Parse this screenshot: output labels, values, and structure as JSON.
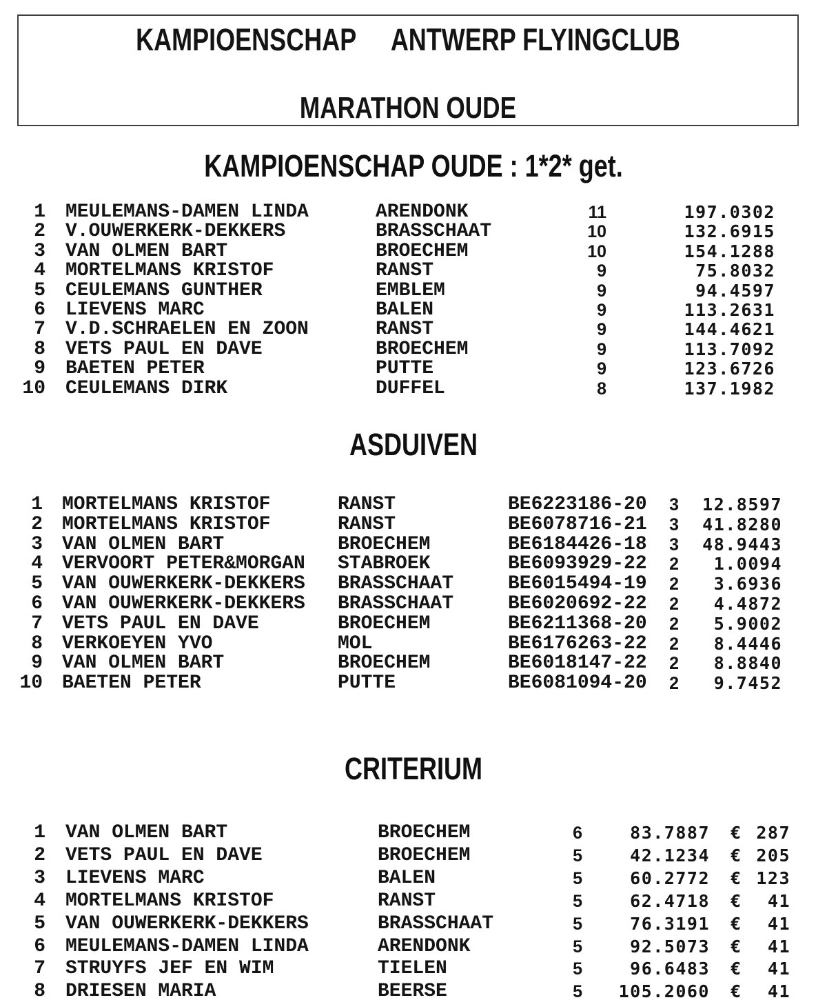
{
  "header_box": {
    "title_left": "KAMPIOENSCHAP",
    "title_right": "ANTWERP FLYINGCLUB",
    "subtitle": "MARATHON OUDE"
  },
  "sections": {
    "kampioenschap_oude": {
      "title": "KAMPIOENSCHAP OUDE : 1*2* get.",
      "rows": [
        {
          "rank": "1",
          "name": "MEULEMANS-DAMEN LINDA",
          "city": "ARENDONK",
          "count": "11",
          "points": "197.0302"
        },
        {
          "rank": "2",
          "name": "V.OUWERKERK-DEKKERS",
          "city": "BRASSCHAAT",
          "count": "10",
          "points": "132.6915"
        },
        {
          "rank": "3",
          "name": "VAN OLMEN BART",
          "city": "BROECHEM",
          "count": "10",
          "points": "154.1288"
        },
        {
          "rank": "4",
          "name": "MORTELMANS KRISTOF",
          "city": "RANST",
          "count": "9",
          "points": "75.8032"
        },
        {
          "rank": "5",
          "name": "CEULEMANS GUNTHER",
          "city": "EMBLEM",
          "count": "9",
          "points": "94.4597"
        },
        {
          "rank": "6",
          "name": "LIEVENS MARC",
          "city": "BALEN",
          "count": "9",
          "points": "113.2631"
        },
        {
          "rank": "7",
          "name": "V.D.SCHRAELEN EN ZOON",
          "city": "RANST",
          "count": "9",
          "points": "144.4621"
        },
        {
          "rank": "8",
          "name": "VETS PAUL EN DAVE",
          "city": "BROECHEM",
          "count": "9",
          "points": "113.7092"
        },
        {
          "rank": "9",
          "name": "BAETEN PETER",
          "city": "PUTTE",
          "count": "9",
          "points": "123.6726"
        },
        {
          "rank": "10",
          "name": "CEULEMANS DIRK",
          "city": "DUFFEL",
          "count": "8",
          "points": "137.1982"
        }
      ]
    },
    "asduiven": {
      "title": "ASDUIVEN",
      "rows": [
        {
          "rank": "1",
          "name": "MORTELMANS KRISTOF",
          "city": "RANST",
          "ring": "BE6223186-20",
          "count": "3",
          "points": "12.8597"
        },
        {
          "rank": "2",
          "name": "MORTELMANS KRISTOF",
          "city": "RANST",
          "ring": "BE6078716-21",
          "count": "3",
          "points": "41.8280"
        },
        {
          "rank": "3",
          "name": "VAN OLMEN BART",
          "city": "BROECHEM",
          "ring": "BE6184426-18",
          "count": "3",
          "points": "48.9443"
        },
        {
          "rank": "4",
          "name": "VERVOORT PETER&MORGAN",
          "city": "STABROEK",
          "ring": "BE6093929-22",
          "count": "2",
          "points": "1.0094"
        },
        {
          "rank": "5",
          "name": "VAN OUWERKERK-DEKKERS",
          "city": "BRASSCHAAT",
          "ring": "BE6015494-19",
          "count": "2",
          "points": "3.6936"
        },
        {
          "rank": "6",
          "name": "VAN OUWERKERK-DEKKERS",
          "city": "BRASSCHAAT",
          "ring": "BE6020692-22",
          "count": "2",
          "points": "4.4872"
        },
        {
          "rank": "7",
          "name": "VETS PAUL EN DAVE",
          "city": "BROECHEM",
          "ring": "BE6211368-20",
          "count": "2",
          "points": "5.9002"
        },
        {
          "rank": "8",
          "name": "VERKOEYEN YVO",
          "city": "MOL",
          "ring": "BE6176263-22",
          "count": "2",
          "points": "8.4446"
        },
        {
          "rank": "9",
          "name": "VAN OLMEN BART",
          "city": "BROECHEM",
          "ring": "BE6018147-22",
          "count": "2",
          "points": "8.8840"
        },
        {
          "rank": "10",
          "name": "BAETEN PETER",
          "city": "PUTTE",
          "ring": "BE6081094-20",
          "count": "2",
          "points": "9.7452"
        }
      ]
    },
    "criterium": {
      "title": "CRITERIUM",
      "rows": [
        {
          "rank": "1",
          "name": "VAN OLMEN BART",
          "city": "BROECHEM",
          "count": "6",
          "coefficient": "83.7887",
          "currency": "€",
          "prize": "287"
        },
        {
          "rank": "2",
          "name": "VETS PAUL EN DAVE",
          "city": "BROECHEM",
          "count": "5",
          "coefficient": "42.1234",
          "currency": "€",
          "prize": "205"
        },
        {
          "rank": "3",
          "name": "LIEVENS MARC",
          "city": "BALEN",
          "count": "5",
          "coefficient": "60.2772",
          "currency": "€",
          "prize": "123"
        },
        {
          "rank": "4",
          "name": "MORTELMANS KRISTOF",
          "city": "RANST",
          "count": "5",
          "coefficient": "62.4718",
          "currency": "€",
          "prize": "41"
        },
        {
          "rank": "5",
          "name": "VAN OUWERKERK-DEKKERS",
          "city": "BRASSCHAAT",
          "count": "5",
          "coefficient": "76.3191",
          "currency": "€",
          "prize": "41"
        },
        {
          "rank": "6",
          "name": "MEULEMANS-DAMEN LINDA",
          "city": "ARENDONK",
          "count": "5",
          "coefficient": "92.5073",
          "currency": "€",
          "prize": "41"
        },
        {
          "rank": "7",
          "name": "STRUYFS JEF EN WIM",
          "city": "TIELEN",
          "count": "5",
          "coefficient": "96.6483",
          "currency": "€",
          "prize": "41"
        },
        {
          "rank": "8",
          "name": "DRIESEN MARIA",
          "city": "BEERSE",
          "count": "5",
          "coefficient": "105.2060",
          "currency": "€",
          "prize": "41"
        }
      ]
    }
  }
}
